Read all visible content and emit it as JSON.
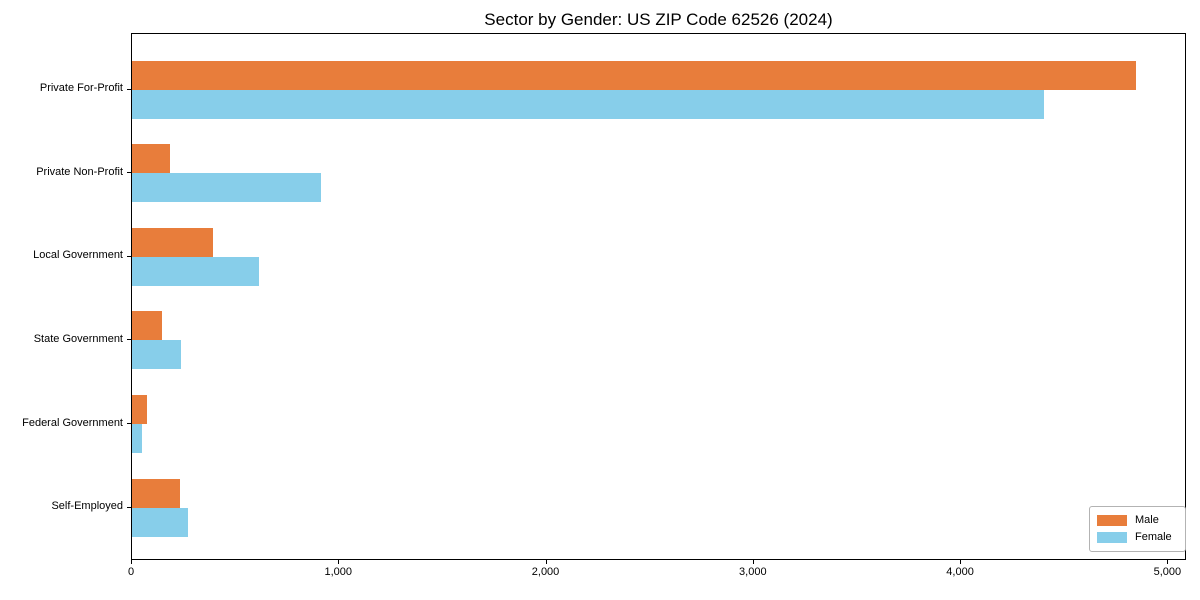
{
  "chart_data": {
    "type": "bar",
    "orientation": "horizontal",
    "title": "Sector by Gender: US ZIP Code 62526 (2024)",
    "categories": [
      "Private For-Profit",
      "Private Non-Profit",
      "Local Government",
      "State Government",
      "Federal Government",
      "Self-Employed"
    ],
    "series": [
      {
        "name": "Male",
        "color": "#e87d3b",
        "values": [
          4845,
          185,
          390,
          145,
          70,
          230
        ]
      },
      {
        "name": "Female",
        "color": "#87ceea",
        "values": [
          4400,
          910,
          615,
          235,
          50,
          270
        ]
      }
    ],
    "xlabel": "",
    "ylabel": "",
    "xlim": [
      0,
      5090
    ],
    "x_ticks": [
      0,
      1000,
      2000,
      3000,
      4000,
      5000
    ],
    "x_tick_labels": [
      "0",
      "1,000",
      "2,000",
      "3,000",
      "4,000",
      "5,000"
    ],
    "legend_position": "lower right",
    "grid": false,
    "axis_color": "#000000"
  }
}
